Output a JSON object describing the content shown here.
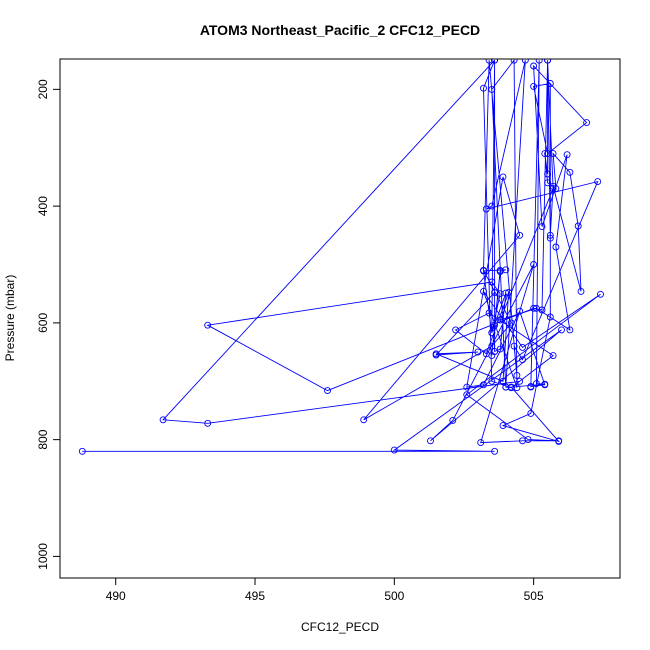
{
  "chart_data": {
    "type": "line",
    "title": "ATOM3 Northeast_Pacific_2 CFC12_PECD",
    "xlabel": "CFC12_PECD",
    "ylabel": "Pressure (mbar)",
    "xlim": [
      488,
      508.1
    ],
    "ylim": [
      1037,
      148
    ],
    "y_reversed": true,
    "x_ticks": [
      490,
      495,
      500,
      505
    ],
    "y_ticks": [
      200,
      400,
      600,
      800,
      1000
    ],
    "grid": false,
    "marker": "open-circle",
    "line_color": "#0000ff",
    "series": [
      {
        "points": [
          [
            488.8,
            820
          ],
          [
            503.6,
            820
          ],
          [
            500.0,
            818
          ],
          [
            506.0,
            612
          ],
          [
            501.3,
            802
          ],
          [
            502.1,
            767
          ],
          [
            505.0,
            500
          ],
          [
            503.1,
            805
          ],
          [
            504.6,
            802
          ],
          [
            505.9,
            802
          ],
          [
            504.8,
            800
          ],
          [
            502.6,
            723
          ],
          [
            507.4,
            551
          ],
          [
            504.6,
            642
          ],
          [
            503.2,
            546
          ],
          [
            504.4,
            711
          ],
          [
            504.3,
            150
          ],
          [
            503.5,
            200
          ],
          [
            504.0,
            710
          ],
          [
            504.2,
            711
          ],
          [
            505.7,
            656
          ],
          [
            503.4,
            583
          ],
          [
            502.2,
            612
          ],
          [
            503.3,
            653
          ],
          [
            504.1,
            548
          ],
          [
            503.9,
            700
          ],
          [
            501.5,
            653
          ],
          [
            503.0,
            650
          ],
          [
            501.5,
            655
          ],
          [
            503.6,
            548
          ],
          [
            503.6,
            604
          ],
          [
            503.8,
            510
          ],
          [
            503.5,
            656
          ],
          [
            503.8,
            512
          ],
          [
            504.0,
            509
          ],
          [
            503.2,
            511
          ],
          [
            503.5,
            617
          ],
          [
            504.0,
            549
          ],
          [
            503.8,
            645
          ],
          [
            503.6,
            649
          ],
          [
            503.6,
            150
          ],
          [
            503.5,
            617
          ],
          [
            503.8,
            550
          ],
          [
            503.5,
            530
          ],
          [
            493.3,
            604
          ],
          [
            497.6,
            716
          ],
          [
            505.0,
            575
          ],
          [
            505.3,
            578
          ],
          [
            505.5,
            150
          ],
          [
            505.5,
            345
          ],
          [
            505.4,
            310
          ],
          [
            505.5,
            360
          ],
          [
            505.8,
            370
          ],
          [
            505.7,
            310
          ],
          [
            506.3,
            342
          ],
          [
            506.6,
            434
          ],
          [
            506.7,
            546
          ],
          [
            505.7,
            366
          ],
          [
            505.6,
            450
          ],
          [
            505.6,
            455
          ],
          [
            505.5,
            150
          ],
          [
            505.7,
            370
          ],
          [
            503.8,
            595
          ],
          [
            505.1,
            575
          ],
          [
            506.3,
            612
          ],
          [
            505.8,
            470
          ],
          [
            506.2,
            312
          ],
          [
            505.3,
            435
          ],
          [
            505.0,
            160
          ],
          [
            506.9,
            257
          ],
          [
            505.5,
            310
          ],
          [
            505.0,
            195
          ],
          [
            505.6,
            190
          ],
          [
            505.6,
            590
          ],
          [
            504.9,
            755
          ],
          [
            503.9,
            776
          ],
          [
            505.9,
            803
          ],
          [
            504.2,
            710
          ],
          [
            505.4,
            705
          ],
          [
            505.1,
            704
          ],
          [
            505.2,
            150
          ],
          [
            504.9,
            710
          ],
          [
            504.9,
            709
          ],
          [
            505.4,
            706
          ],
          [
            504.5,
            580
          ],
          [
            503.2,
            706
          ],
          [
            502.6,
            710
          ],
          [
            503.9,
            350
          ],
          [
            504.5,
            450
          ],
          [
            498.9,
            766
          ],
          [
            503.5,
            640
          ],
          [
            504.2,
            600
          ],
          [
            503.2,
            510
          ],
          [
            503.4,
            150
          ],
          [
            504.4,
            690
          ],
          [
            504.3,
            640
          ],
          [
            504.6,
            663
          ],
          [
            507.3,
            358
          ],
          [
            503.3,
            405
          ],
          [
            503.5,
            400
          ],
          [
            504.7,
            150
          ],
          [
            504.0,
            710
          ],
          [
            504.2,
            711
          ],
          [
            503.5,
            700
          ],
          [
            503.2,
            198
          ],
          [
            503.6,
            150
          ],
          [
            491.7,
            766
          ],
          [
            493.3,
            772
          ],
          [
            504.5,
            700
          ]
        ]
      }
    ]
  }
}
